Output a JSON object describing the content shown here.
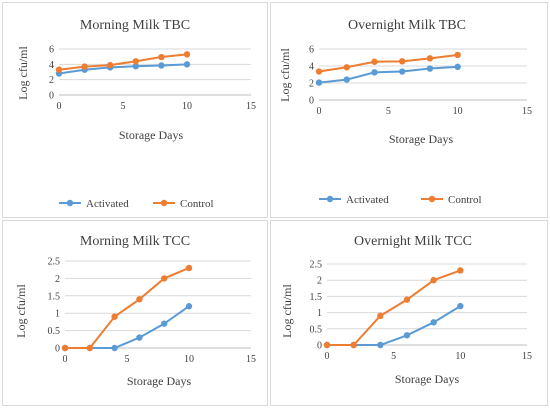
{
  "colors": {
    "activated": "#5b9bd5",
    "control": "#ed7d31",
    "grid": "#d9d9d9",
    "axis": "#bfbfbf"
  },
  "chart_data": [
    {
      "type": "line",
      "title": "Morning Milk TBC",
      "xlabel": "Storage Days",
      "ylabel": "Log cfu/ml",
      "xlim": [
        0,
        15
      ],
      "ylim": [
        0,
        6
      ],
      "xticks": [
        "0",
        "5",
        "10",
        "15"
      ],
      "yticks": [
        "0",
        "2",
        "4",
        "6"
      ],
      "grid": true,
      "legend": "bottom",
      "series": [
        {
          "name": "Activated",
          "x": [
            0,
            2,
            4,
            6,
            8,
            10
          ],
          "values": [
            2.8,
            3.3,
            3.6,
            3.75,
            3.85,
            4.0
          ]
        },
        {
          "name": "Control",
          "x": [
            0,
            2,
            4,
            6,
            8,
            10
          ],
          "values": [
            3.3,
            3.7,
            3.9,
            4.4,
            4.95,
            5.3
          ]
        }
      ]
    },
    {
      "type": "line",
      "title": "Overnight Milk TBC",
      "xlabel": "Storage Days",
      "ylabel": "Log cfu/ml",
      "xlim": [
        0,
        15
      ],
      "ylim": [
        0,
        6
      ],
      "xticks": [
        "0",
        "5",
        "10",
        "15"
      ],
      "yticks": [
        "0",
        "2",
        "4",
        "6"
      ],
      "grid": true,
      "legend": "bottom",
      "series": [
        {
          "name": "Activated",
          "x": [
            0,
            2,
            4,
            6,
            8,
            10
          ],
          "values": [
            2.05,
            2.4,
            3.25,
            3.35,
            3.7,
            3.9
          ]
        },
        {
          "name": "Control",
          "x": [
            0,
            2,
            4,
            6,
            8,
            10
          ],
          "values": [
            3.35,
            3.85,
            4.5,
            4.55,
            4.9,
            5.3
          ]
        }
      ]
    },
    {
      "type": "line",
      "title": "Morning Milk TCC",
      "xlabel": "Storage Days",
      "ylabel": "Log cfu/ml",
      "xlim": [
        0,
        15
      ],
      "ylim": [
        0,
        2.5
      ],
      "xticks": [
        "0",
        "5",
        "10",
        "15"
      ],
      "yticks": [
        "0",
        "0.5",
        "1",
        "1.5",
        "2",
        "2.5"
      ],
      "grid": true,
      "legend": "none",
      "series": [
        {
          "name": "Activated",
          "x": [
            0,
            2,
            4,
            6,
            8,
            10
          ],
          "values": [
            0,
            0,
            0,
            0.3,
            0.7,
            1.2
          ]
        },
        {
          "name": "Control",
          "x": [
            0,
            2,
            4,
            6,
            8,
            10
          ],
          "values": [
            0,
            0,
            0.9,
            1.4,
            2.0,
            2.3
          ]
        }
      ]
    },
    {
      "type": "line",
      "title": "Overnight Milk TCC",
      "xlabel": "Storage Days",
      "ylabel": "Log cfu/ml",
      "xlim": [
        0,
        15
      ],
      "ylim": [
        0,
        2.5
      ],
      "xticks": [
        "0",
        "5",
        "10",
        "15"
      ],
      "yticks": [
        "0",
        "0.5",
        "1",
        "1.5",
        "2",
        "2.5"
      ],
      "grid": true,
      "legend": "none",
      "series": [
        {
          "name": "Activated",
          "x": [
            0,
            2,
            4,
            6,
            8,
            10
          ],
          "values": [
            0,
            0,
            0,
            0.3,
            0.7,
            1.2
          ]
        },
        {
          "name": "Control",
          "x": [
            0,
            2,
            4,
            6,
            8,
            10
          ],
          "values": [
            0,
            0,
            0.9,
            1.4,
            2.0,
            2.3
          ]
        }
      ]
    }
  ]
}
